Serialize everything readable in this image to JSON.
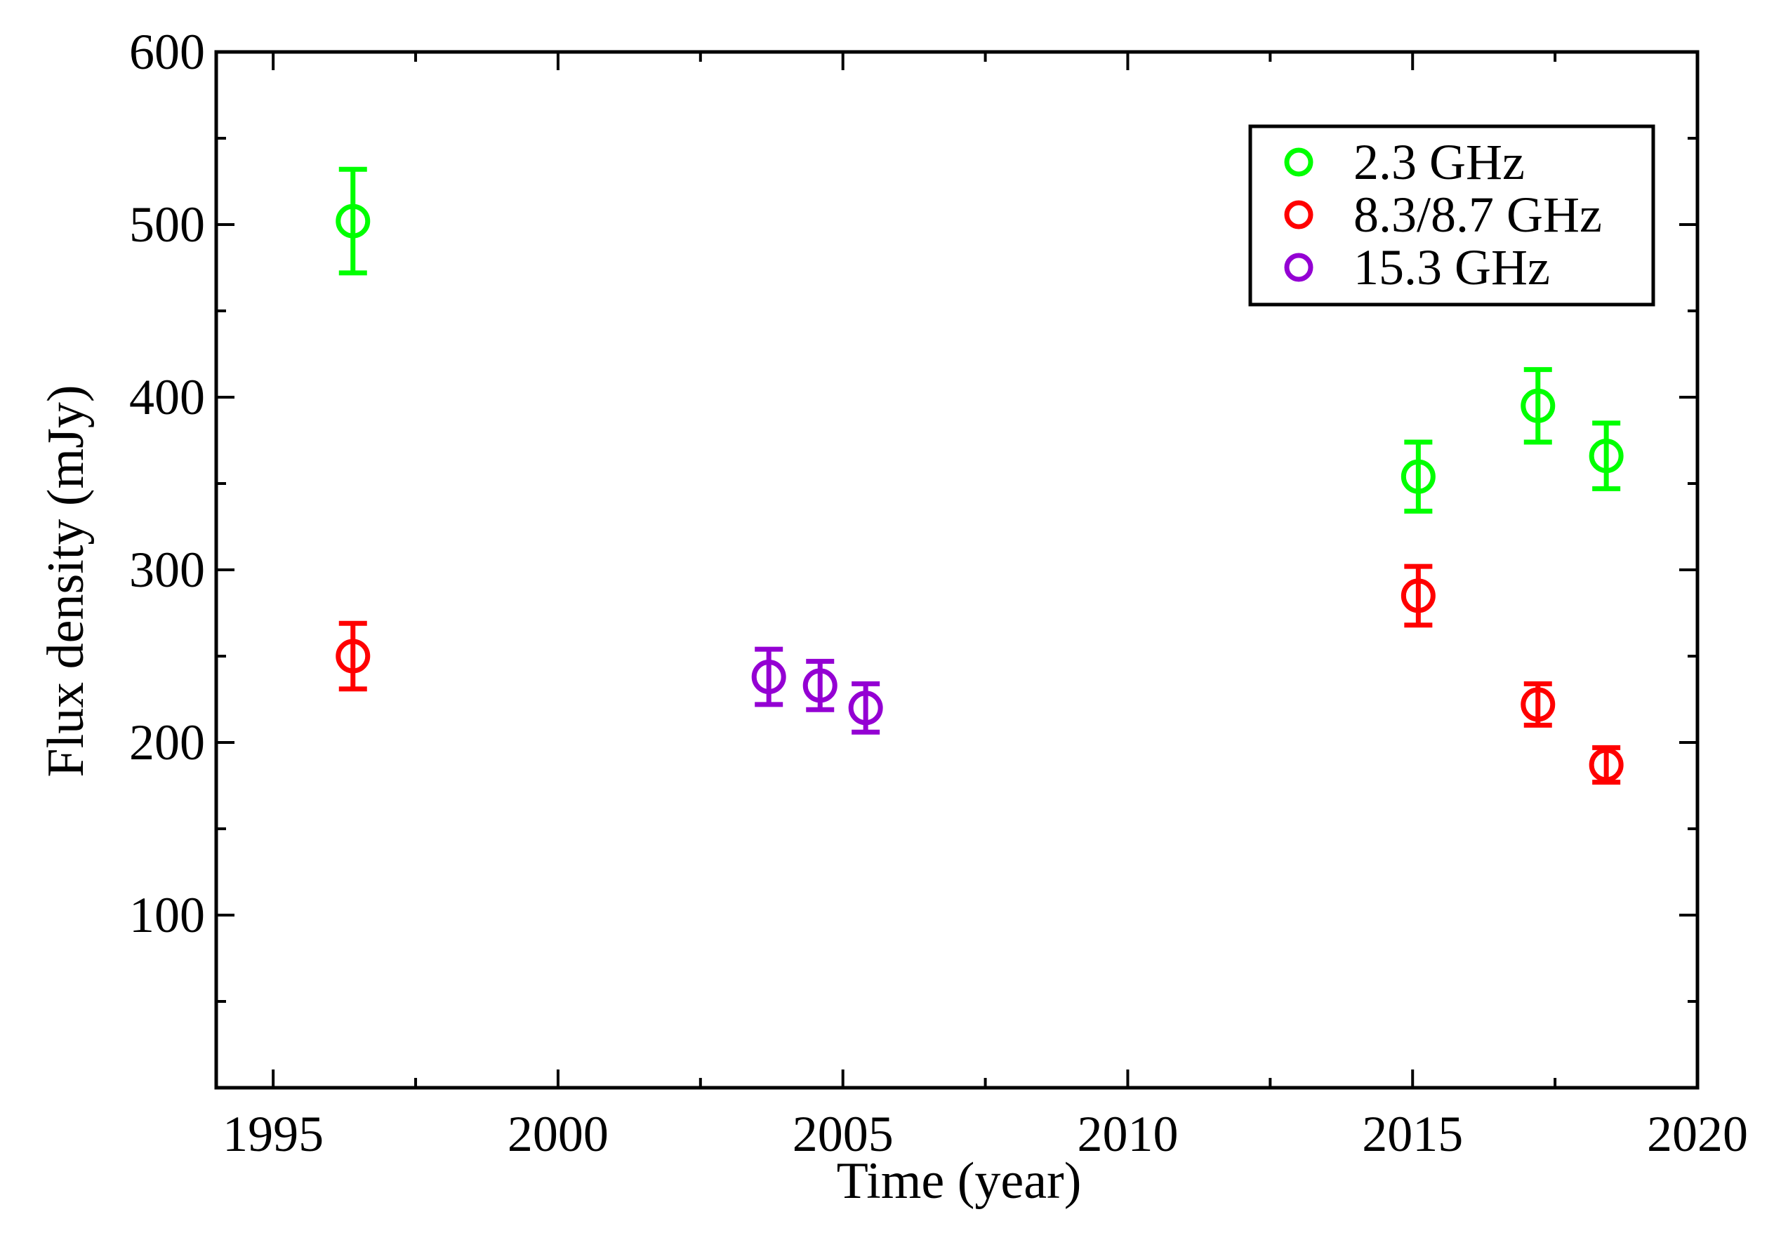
{
  "chart_data": {
    "type": "scatter",
    "title": "",
    "xlabel": "Time (year)",
    "ylabel": "Flux density (mJy)",
    "xlim": [
      1994,
      2020
    ],
    "ylim": [
      0,
      600
    ],
    "x_ticks": [
      1995,
      2000,
      2005,
      2010,
      2015,
      2020
    ],
    "y_ticks": [
      100,
      200,
      300,
      400,
      500,
      600
    ],
    "x_tick_labels": [
      "1995",
      "2000",
      "2005",
      "2010",
      "2015",
      "2020"
    ],
    "y_tick_labels": [
      "100",
      "200",
      "300",
      "400",
      "500",
      "600"
    ],
    "grid": false,
    "legend_position": "top-right",
    "series": [
      {
        "name": "2.3 GHz",
        "color": "#00ff00",
        "marker": "open-circle",
        "points": [
          {
            "x": 1996.4,
            "y": 502,
            "err": 30
          },
          {
            "x": 2015.1,
            "y": 354,
            "err": 20
          },
          {
            "x": 2017.2,
            "y": 395,
            "err": 21
          },
          {
            "x": 2018.4,
            "y": 366,
            "err": 19
          }
        ]
      },
      {
        "name": "8.3/8.7 GHz",
        "color": "#ff0000",
        "marker": "open-circle",
        "points": [
          {
            "x": 1996.4,
            "y": 250,
            "err": 19
          },
          {
            "x": 2015.1,
            "y": 285,
            "err": 17
          },
          {
            "x": 2017.2,
            "y": 222,
            "err": 12
          },
          {
            "x": 2018.4,
            "y": 187,
            "err": 10
          }
        ]
      },
      {
        "name": "15.3 GHz",
        "color": "#9400d3",
        "marker": "open-circle",
        "points": [
          {
            "x": 2003.7,
            "y": 238,
            "err": 16
          },
          {
            "x": 2004.6,
            "y": 233,
            "err": 14
          },
          {
            "x": 2005.4,
            "y": 220,
            "err": 14
          }
        ]
      }
    ]
  }
}
